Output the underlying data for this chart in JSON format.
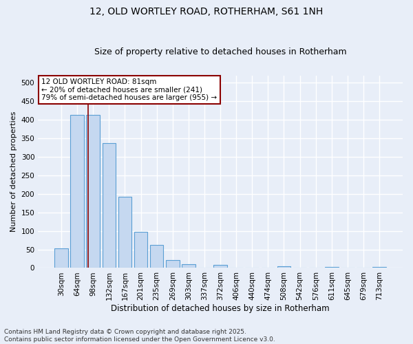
{
  "title_line1": "12, OLD WORTLEY ROAD, ROTHERHAM, S61 1NH",
  "title_line2": "Size of property relative to detached houses in Rotherham",
  "xlabel": "Distribution of detached houses by size in Rotherham",
  "ylabel": "Number of detached properties",
  "bar_color": "#c5d8f0",
  "bar_edge_color": "#5a9fd4",
  "categories": [
    "30sqm",
    "64sqm",
    "98sqm",
    "132sqm",
    "167sqm",
    "201sqm",
    "235sqm",
    "269sqm",
    "303sqm",
    "337sqm",
    "372sqm",
    "406sqm",
    "440sqm",
    "474sqm",
    "508sqm",
    "542sqm",
    "576sqm",
    "611sqm",
    "645sqm",
    "679sqm",
    "713sqm"
  ],
  "values": [
    53,
    414,
    414,
    338,
    193,
    97,
    63,
    22,
    11,
    0,
    9,
    0,
    0,
    0,
    5,
    0,
    0,
    3,
    0,
    0,
    2
  ],
  "ylim": [
    0,
    520
  ],
  "yticks": [
    0,
    50,
    100,
    150,
    200,
    250,
    300,
    350,
    400,
    450,
    500
  ],
  "vline_x": 1.68,
  "vline_color": "#8b0000",
  "annotation_text": "12 OLD WORTLEY ROAD: 81sqm\n← 20% of detached houses are smaller (241)\n79% of semi-detached houses are larger (955) →",
  "annotation_box_facecolor": "#ffffff",
  "annotation_box_edgecolor": "#8b0000",
  "background_color": "#e8eef8",
  "grid_color": "#ffffff",
  "footer_line1": "Contains HM Land Registry data © Crown copyright and database right 2025.",
  "footer_line2": "Contains public sector information licensed under the Open Government Licence v3.0.",
  "title_fontsize": 10,
  "subtitle_fontsize": 9,
  "tick_fontsize": 7.5,
  "annotation_fontsize": 7.5,
  "footer_fontsize": 6.5,
  "xlabel_fontsize": 8.5,
  "ylabel_fontsize": 8
}
